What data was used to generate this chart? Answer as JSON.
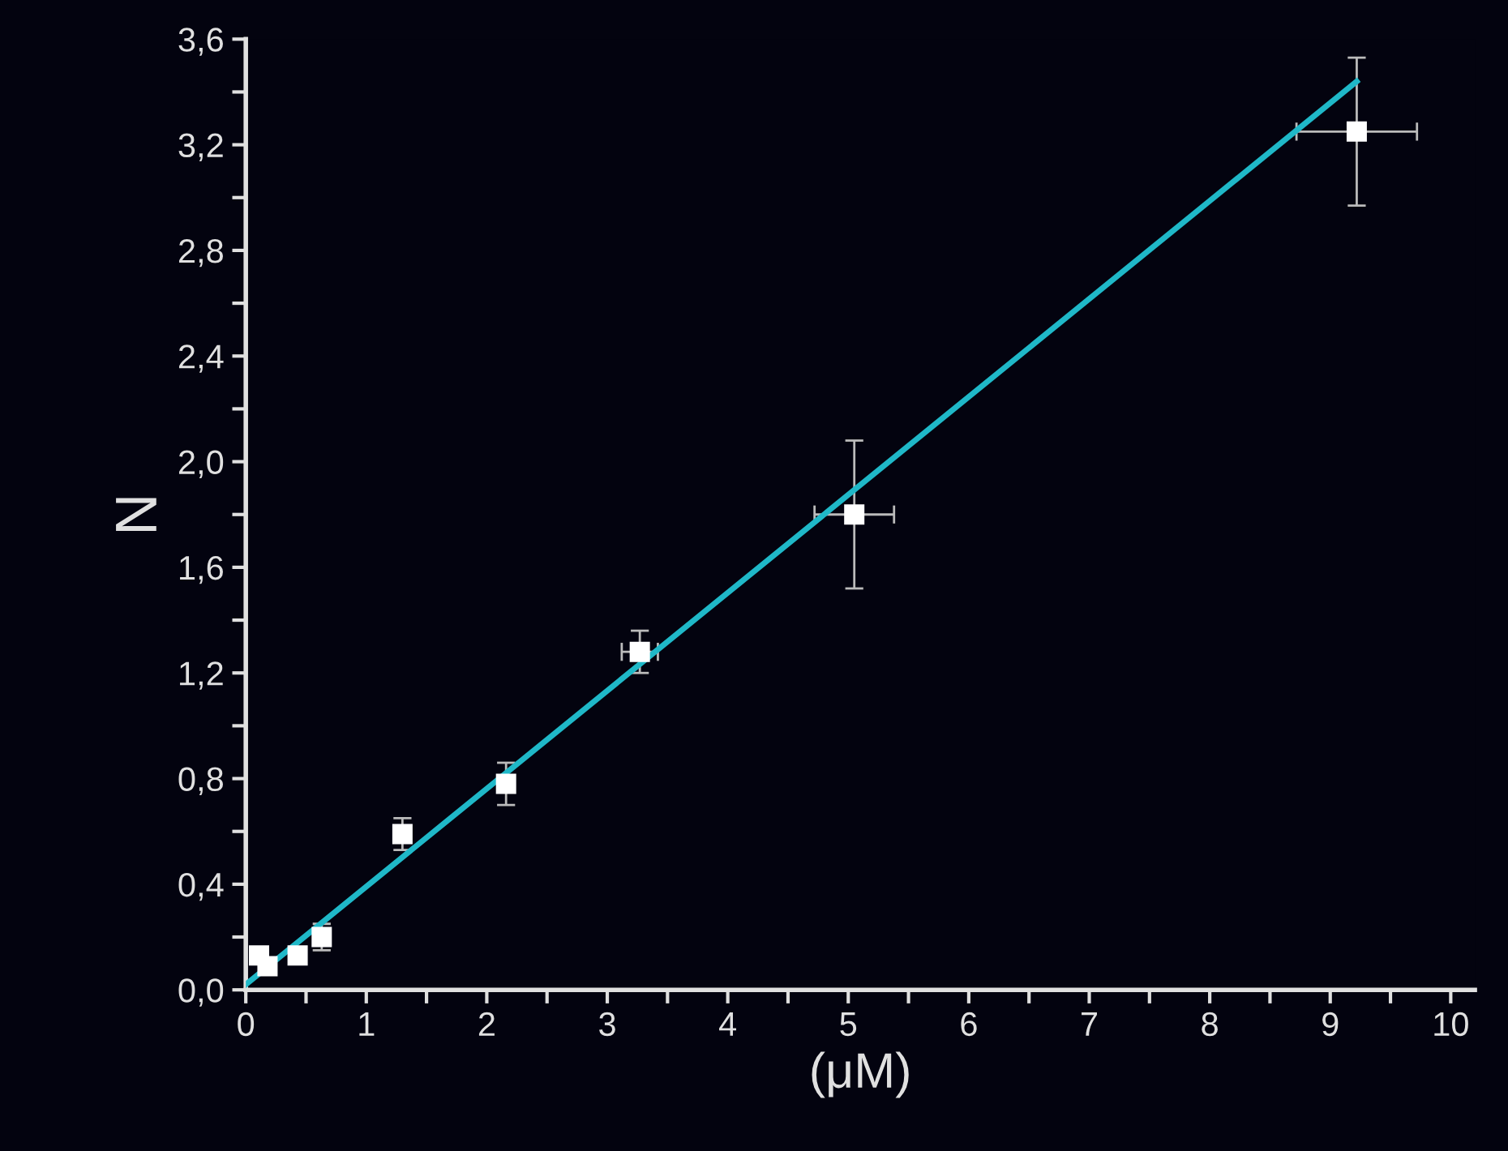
{
  "chart_data": {
    "type": "scatter",
    "xlabel": "(μM)",
    "ylabel": "N",
    "x": [
      0.11,
      0.18,
      0.43,
      0.63,
      1.3,
      2.16,
      3.27,
      5.05,
      9.22
    ],
    "series": [
      {
        "color": "#ffffff",
        "marker": "square",
        "values": [
          0.13,
          0.09,
          0.13,
          0.2,
          0.59,
          0.78,
          1.28,
          1.8,
          3.25
        ],
        "errors": [
          null,
          null,
          null,
          0.05,
          0.06,
          0.08,
          0.08,
          0.28,
          0.28
        ],
        "xerrors": [
          null,
          null,
          null,
          null,
          null,
          null,
          0.15,
          0.33,
          0.5
        ]
      },
      {
        "type": "line",
        "color": "#1fb8c8",
        "x": [
          0,
          9.22
        ],
        "values": [
          0.02,
          3.44
        ],
        "marker": "none",
        "line_style": "solid"
      }
    ],
    "xlim": [
      0,
      10.2
    ],
    "ylim": [
      0,
      3.6
    ],
    "xticks": [
      0,
      {
        "value": 0.5,
        "label": null
      },
      1,
      {
        "value": 1.5,
        "label": null
      },
      2,
      {
        "value": 2.5,
        "label": null
      },
      3,
      {
        "value": 3.5,
        "label": null
      },
      4,
      {
        "value": 4.5,
        "label": null
      },
      5,
      {
        "value": 5.5,
        "label": null
      },
      6,
      {
        "value": 6.5,
        "label": null
      },
      7,
      {
        "value": 7.5,
        "label": null
      },
      8,
      {
        "value": 8.5,
        "label": null
      },
      9,
      {
        "value": 9.5,
        "label": null
      },
      10
    ],
    "yticks": [
      {
        "value": 0,
        "label": "0,0"
      },
      {
        "value": 0.2,
        "label": null
      },
      {
        "value": 0.4,
        "label": "0,4"
      },
      {
        "value": 0.6,
        "label": null
      },
      {
        "value": 0.8,
        "label": "0,8"
      },
      {
        "value": 1.0,
        "label": null
      },
      {
        "value": 1.2,
        "label": "1,2"
      },
      {
        "value": 1.4,
        "label": null
      },
      {
        "value": 1.6,
        "label": "1,6"
      },
      {
        "value": 1.8,
        "label": null
      },
      {
        "value": 2.0,
        "label": "2,0"
      },
      {
        "value": 2.2,
        "label": null
      },
      {
        "value": 2.4,
        "label": "2,4"
      },
      {
        "value": 2.6,
        "label": null
      },
      {
        "value": 2.8,
        "label": "2,8"
      },
      {
        "value": 3.0,
        "label": null
      },
      {
        "value": 3.2,
        "label": "3,2"
      },
      {
        "value": 3.4,
        "label": null
      },
      {
        "value": 3.6,
        "label": "3,6"
      }
    ],
    "grid": false
  }
}
